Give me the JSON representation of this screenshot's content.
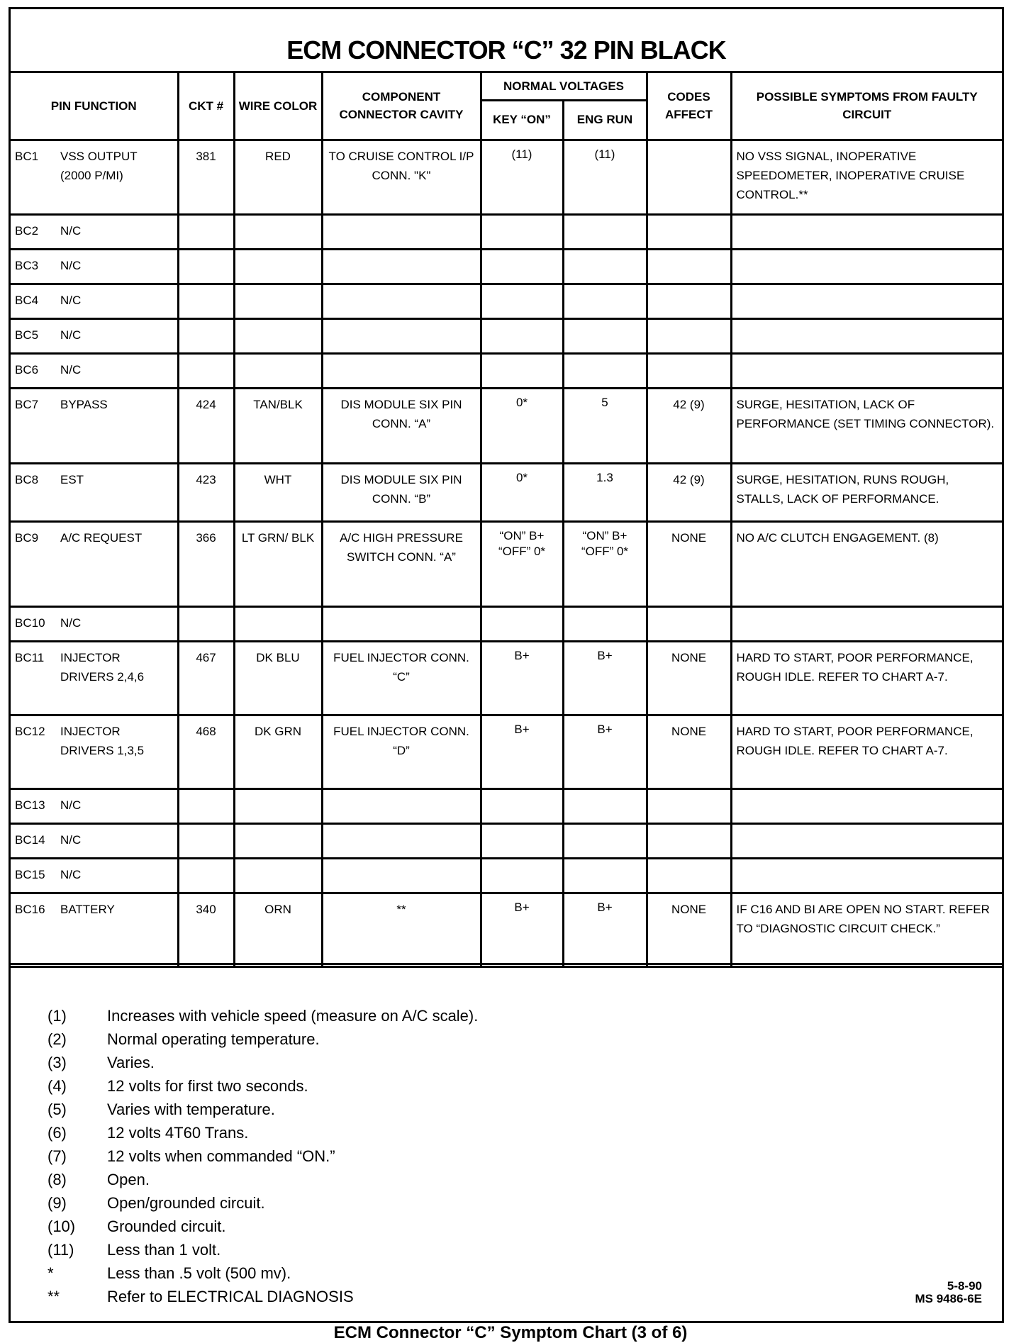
{
  "title": "ECM CONNECTOR “C” 32 PIN BLACK",
  "headers": {
    "pin_function": "PIN FUNCTION",
    "ckt": "CKT #",
    "wire_color": "WIRE COLOR",
    "component": "COMPONENT CONNECTOR CAVITY",
    "normal_voltages": "NORMAL VOLTAGES",
    "key_on": "KEY “ON”",
    "eng_run": "ENG RUN",
    "codes": "CODES AFFECT",
    "symptoms": "POSSIBLE SYMPTOMS FROM FAULTY CIRCUIT"
  },
  "rows": [
    {
      "pin": "BC1",
      "function": "VSS OUTPUT (2000 P/MI)",
      "ckt": "381",
      "wire": "RED",
      "component": "TO CRUISE CONTROL I/P CONN. \"K\"",
      "key_on": "(11)",
      "eng_run": "(11)",
      "codes": "",
      "symptoms": "NO VSS SIGNAL, INOPERATIVE SPEEDOMETER, INOPERATIVE CRUISE CONTROL.**"
    },
    {
      "pin": "BC2",
      "function": "N/C",
      "ckt": "",
      "wire": "",
      "component": "",
      "key_on": "",
      "eng_run": "",
      "codes": "",
      "symptoms": ""
    },
    {
      "pin": "BC3",
      "function": "N/C",
      "ckt": "",
      "wire": "",
      "component": "",
      "key_on": "",
      "eng_run": "",
      "codes": "",
      "symptoms": ""
    },
    {
      "pin": "BC4",
      "function": "N/C",
      "ckt": "",
      "wire": "",
      "component": "",
      "key_on": "",
      "eng_run": "",
      "codes": "",
      "symptoms": ""
    },
    {
      "pin": "BC5",
      "function": "N/C",
      "ckt": "",
      "wire": "",
      "component": "",
      "key_on": "",
      "eng_run": "",
      "codes": "",
      "symptoms": ""
    },
    {
      "pin": "BC6",
      "function": "N/C",
      "ckt": "",
      "wire": "",
      "component": "",
      "key_on": "",
      "eng_run": "",
      "codes": "",
      "symptoms": ""
    },
    {
      "pin": "BC7",
      "function": "BYPASS",
      "ckt": "424",
      "wire": "TAN/BLK",
      "component": "DIS MODULE SIX PIN CONN. “A”",
      "key_on": "0*",
      "eng_run": "5",
      "codes": "42 (9)",
      "symptoms": "SURGE, HESITATION, LACK OF PERFORMANCE (SET TIMING CONNECTOR)."
    },
    {
      "pin": "BC8",
      "function": "EST",
      "ckt": "423",
      "wire": "WHT",
      "component": "DIS MODULE SIX PIN CONN. “B”",
      "key_on": "0*",
      "eng_run": "1.3",
      "codes": "42 (9)",
      "symptoms": "SURGE, HESITATION, RUNS ROUGH, STALLS, LACK OF PERFORMANCE."
    },
    {
      "pin": "BC9",
      "function": "A/C REQUEST",
      "ckt": "366",
      "wire": "LT GRN/ BLK",
      "component": "A/C HIGH PRESSURE SWITCH CONN. “A”",
      "key_on": "“ON” B+ “OFF” 0*",
      "eng_run": "“ON” B+ “OFF” 0*",
      "codes": "NONE",
      "symptoms": "NO A/C CLUTCH ENGAGEMENT. (8)"
    },
    {
      "pin": "BC10",
      "function": "N/C",
      "ckt": "",
      "wire": "",
      "component": "",
      "key_on": "",
      "eng_run": "",
      "codes": "",
      "symptoms": ""
    },
    {
      "pin": "BC11",
      "function": "INJECTOR DRIVERS 2,4,6",
      "ckt": "467",
      "wire": "DK BLU",
      "component": "FUEL INJECTOR CONN. “C”",
      "key_on": "B+",
      "eng_run": "B+",
      "codes": "NONE",
      "symptoms": "HARD TO START, POOR PERFORMANCE, ROUGH IDLE. REFER TO CHART A-7."
    },
    {
      "pin": "BC12",
      "function": "INJECTOR DRIVERS 1,3,5",
      "ckt": "468",
      "wire": "DK GRN",
      "component": "FUEL INJECTOR CONN. “D”",
      "key_on": "B+",
      "eng_run": "B+",
      "codes": "NONE",
      "symptoms": "HARD TO START, POOR PERFORMANCE, ROUGH IDLE. REFER TO CHART A-7."
    },
    {
      "pin": "BC13",
      "function": "N/C",
      "ckt": "",
      "wire": "",
      "component": "",
      "key_on": "",
      "eng_run": "",
      "codes": "",
      "symptoms": ""
    },
    {
      "pin": "BC14",
      "function": "N/C",
      "ckt": "",
      "wire": "",
      "component": "",
      "key_on": "",
      "eng_run": "",
      "codes": "",
      "symptoms": ""
    },
    {
      "pin": "BC15",
      "function": "N/C",
      "ckt": "",
      "wire": "",
      "component": "",
      "key_on": "",
      "eng_run": "",
      "codes": "",
      "symptoms": ""
    },
    {
      "pin": "BC16",
      "function": "BATTERY",
      "ckt": "340",
      "wire": "ORN",
      "component": "**",
      "key_on": "B+",
      "eng_run": "B+",
      "codes": "NONE",
      "symptoms": "IF C16 AND BI ARE OPEN NO START. REFER TO “DIAGNOSTIC CIRCUIT CHECK.”"
    }
  ],
  "notes": [
    {
      "key": "(1)",
      "text": "Increases with vehicle speed (measure on A/C scale)."
    },
    {
      "key": "(2)",
      "text": "Normal operating temperature."
    },
    {
      "key": "(3)",
      "text": "Varies."
    },
    {
      "key": "(4)",
      "text": "12  volts for first two seconds."
    },
    {
      "key": "(5)",
      "text": "Varies with temperature."
    },
    {
      "key": "(6)",
      "text": "12 volts 4T60 Trans."
    },
    {
      "key": "(7)",
      "text": "12 volts when commanded “ON.”"
    },
    {
      "key": "(8)",
      "text": "Open."
    },
    {
      "key": "(9)",
      "text": "Open/grounded circuit."
    },
    {
      "key": "(10)",
      "text": "Grounded circuit."
    },
    {
      "key": "(11)",
      "text": "Less than 1 volt."
    },
    {
      "key": "*",
      "text": "Less than .5 volt (500 mv)."
    },
    {
      "key": "**",
      "text": "Refer to ELECTRICAL DIAGNOSIS"
    }
  ],
  "revision": {
    "date": "5-8-90",
    "code": "MS 9486-6E"
  },
  "caption": "ECM Connector “C” Symptom Chart (3 of 6)"
}
